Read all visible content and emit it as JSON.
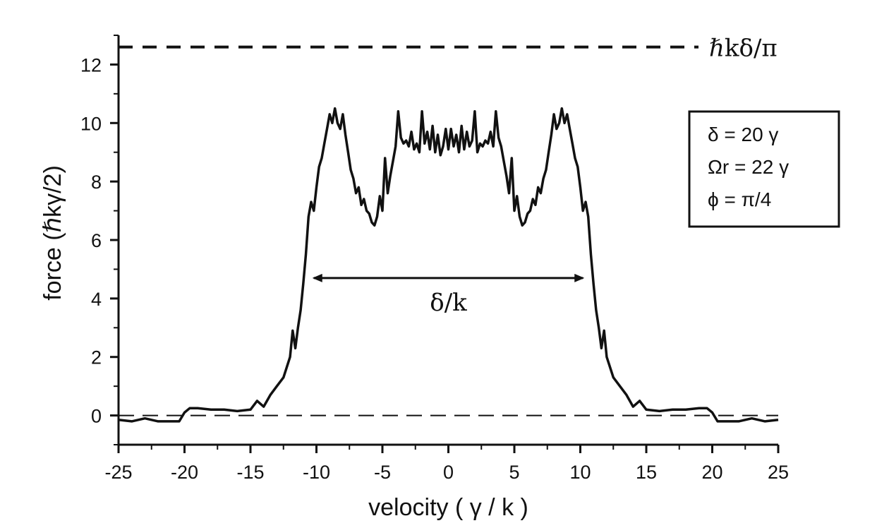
{
  "chart_data": {
    "type": "line",
    "xlabel": "velocity ( γ / k )",
    "ylabel": "force (ℏkγ/2)",
    "xlim": [
      -25,
      25
    ],
    "ylim": [
      -1,
      13
    ],
    "xticks": [
      -25,
      -20,
      -15,
      -10,
      -5,
      0,
      5,
      10,
      15,
      20,
      25
    ],
    "yticks": [
      0,
      2,
      4,
      6,
      8,
      10,
      12
    ],
    "grid": false,
    "series": [
      {
        "x": [
          -25,
          -24,
          -23,
          -22,
          -21,
          -20.4,
          -20,
          -19.6,
          -19,
          -18,
          -17,
          -16,
          -15,
          -14.5,
          -14,
          -13.5,
          -13,
          -12.5,
          -12,
          -11.8,
          -11.6,
          -11.4,
          -11.2,
          -11,
          -10.8,
          -10.6,
          -10.4,
          -10.2,
          -10,
          -9.8,
          -9.6,
          -9.4,
          -9.2,
          -9,
          -8.8,
          -8.6,
          -8.4,
          -8.2,
          -8,
          -7.8,
          -7.6,
          -7.4,
          -7.2,
          -7,
          -6.8,
          -6.6,
          -6.4,
          -6.2,
          -6,
          -5.8,
          -5.6,
          -5.4,
          -5.2,
          -5,
          -4.8,
          -4.6,
          -4.4,
          -4.2,
          -4,
          -3.8,
          -3.6,
          -3.4,
          -3.2,
          -3,
          -2.8,
          -2.6,
          -2.4,
          -2.2,
          -2,
          -1.8,
          -1.6,
          -1.4,
          -1.2,
          -1,
          -0.8,
          -0.6,
          -0.4,
          -0.2,
          0,
          0.2,
          0.4,
          0.6,
          0.8,
          1,
          1.2,
          1.4,
          1.6,
          1.8,
          2,
          2.2,
          2.4,
          2.6,
          2.8,
          3,
          3.2,
          3.4,
          3.6,
          3.8,
          4,
          4.2,
          4.4,
          4.6,
          4.8,
          5,
          5.2,
          5.4,
          5.6,
          5.8,
          6,
          6.2,
          6.4,
          6.6,
          6.8,
          7,
          7.2,
          7.4,
          7.6,
          7.8,
          8,
          8.2,
          8.4,
          8.6,
          8.8,
          9,
          9.2,
          9.4,
          9.6,
          9.8,
          10,
          10.2,
          10.4,
          10.6,
          10.8,
          11,
          11.2,
          11.4,
          11.6,
          11.8,
          12,
          12.5,
          13,
          13.5,
          14,
          14.5,
          15,
          16,
          17,
          18,
          19,
          19.6,
          20,
          20.4,
          21,
          22,
          23,
          24,
          25
        ],
        "y": [
          -0.15,
          -0.2,
          -0.1,
          -0.2,
          -0.2,
          -0.2,
          0.1,
          0.25,
          0.25,
          0.2,
          0.2,
          0.15,
          0.2,
          0.5,
          0.3,
          0.7,
          1.0,
          1.3,
          2.0,
          2.9,
          2.3,
          3.0,
          3.6,
          4.5,
          5.5,
          6.8,
          7.3,
          7.0,
          7.8,
          8.5,
          8.8,
          9.3,
          9.8,
          10.3,
          10.0,
          10.5,
          10.0,
          9.8,
          10.3,
          9.6,
          9.0,
          8.4,
          8.1,
          7.6,
          7.8,
          7.2,
          7.4,
          7.0,
          6.9,
          6.6,
          6.5,
          6.8,
          7.5,
          7.0,
          8.8,
          7.6,
          8.2,
          8.7,
          9.2,
          10.4,
          9.5,
          9.3,
          9.4,
          9.2,
          9.7,
          9.1,
          9.3,
          9.0,
          10.4,
          9.3,
          9.7,
          9.1,
          9.9,
          9.0,
          9.6,
          8.9,
          9.2,
          9.8,
          9.1,
          9.8,
          9.2,
          9.6,
          9.0,
          9.9,
          9.1,
          9.7,
          9.2,
          9.4,
          10.4,
          9.0,
          9.3,
          9.2,
          9.4,
          9.3,
          9.7,
          9.2,
          10.4,
          9.5,
          9.2,
          8.7,
          8.2,
          7.6,
          8.8,
          7.0,
          7.5,
          6.8,
          6.5,
          6.6,
          6.9,
          7.0,
          7.4,
          7.2,
          7.8,
          7.6,
          8.1,
          8.4,
          9.0,
          9.6,
          10.3,
          9.8,
          10.0,
          10.5,
          10.0,
          10.3,
          9.8,
          9.3,
          8.8,
          8.5,
          7.8,
          7.0,
          7.3,
          6.8,
          5.5,
          4.5,
          3.6,
          3.0,
          2.3,
          2.9,
          2.0,
          1.3,
          1.0,
          0.7,
          0.3,
          0.5,
          0.2,
          0.15,
          0.2,
          0.2,
          0.25,
          0.25,
          0.1,
          -0.2,
          -0.2,
          -0.2,
          -0.1,
          -0.2,
          -0.15
        ]
      }
    ],
    "reference_lines": [
      {
        "y": 12.6,
        "style": "dashed",
        "label": "ℏkδ/π"
      },
      {
        "y": 0,
        "style": "dashed"
      }
    ],
    "annotations": [
      {
        "type": "double-arrow",
        "from_x": -10.2,
        "to_x": 10.2,
        "y": 4.7,
        "label": "δ/k"
      }
    ],
    "legend": {
      "placement": "right",
      "lines": [
        "δ = 20 γ",
        "Ωr = 22 γ",
        "ϕ = π/4"
      ]
    }
  }
}
